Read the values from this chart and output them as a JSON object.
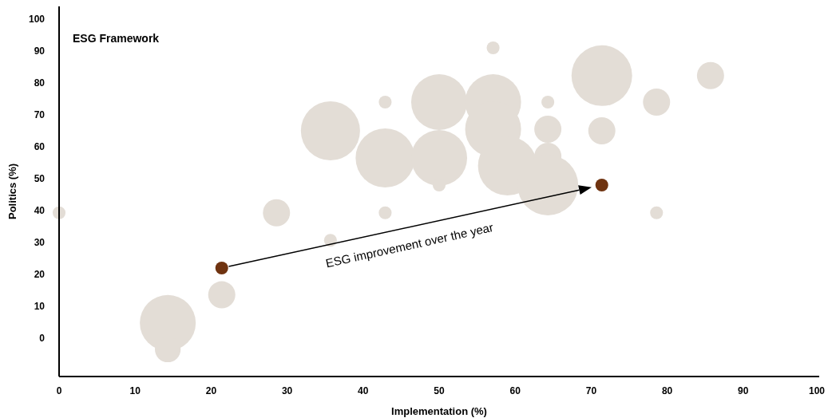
{
  "chart_data": {
    "type": "bubble",
    "title": "ESG Framework",
    "xlabel": "Implementation (%)",
    "ylabel": "Politics (%)",
    "xlim": [
      0,
      100
    ],
    "xticks": [
      0,
      10,
      20,
      30,
      40,
      50,
      60,
      70,
      80,
      90,
      100
    ],
    "ylim": [
      -12,
      104
    ],
    "yticks": [
      0,
      10,
      20,
      30,
      40,
      50,
      60,
      70,
      80,
      90,
      100
    ],
    "grid": false,
    "annotations": [
      "ESG improvement over the year"
    ],
    "series": [
      {
        "color": "#e3ddd6",
        "x": [
          0,
          14.3,
          14.3,
          21.4,
          28.6,
          35.7,
          35.7,
          42.9,
          42.9,
          42.9,
          50,
          50,
          50,
          57.1,
          57.1,
          57.1,
          59,
          64.3,
          64.3,
          64.3,
          64.3,
          71.4,
          71.4,
          78.6,
          78.6,
          85.7
        ],
        "values": [
          39.3,
          4.8,
          -3.5,
          13.6,
          39.3,
          65,
          30.7,
          56.5,
          74,
          39.3,
          74,
          56.5,
          48,
          91,
          74,
          65.5,
          54,
          74,
          65.5,
          57,
          48,
          82.3,
          65,
          74,
          39.3,
          82.3
        ],
        "sizes": [
          0.045,
          0.85,
          0.18,
          0.2,
          0.2,
          0.95,
          0.045,
          0.95,
          0.045,
          0.045,
          0.85,
          0.85,
          0.045,
          0.045,
          0.85,
          0.85,
          0.95,
          0.045,
          0.2,
          0.2,
          1,
          1,
          0.2,
          0.2,
          0.045,
          0.2
        ]
      },
      {
        "color": "#6f3310",
        "x": [
          21.4,
          71.4
        ],
        "values": [
          22,
          48
        ],
        "sizes": [
          0.045,
          0.045
        ]
      }
    ]
  }
}
